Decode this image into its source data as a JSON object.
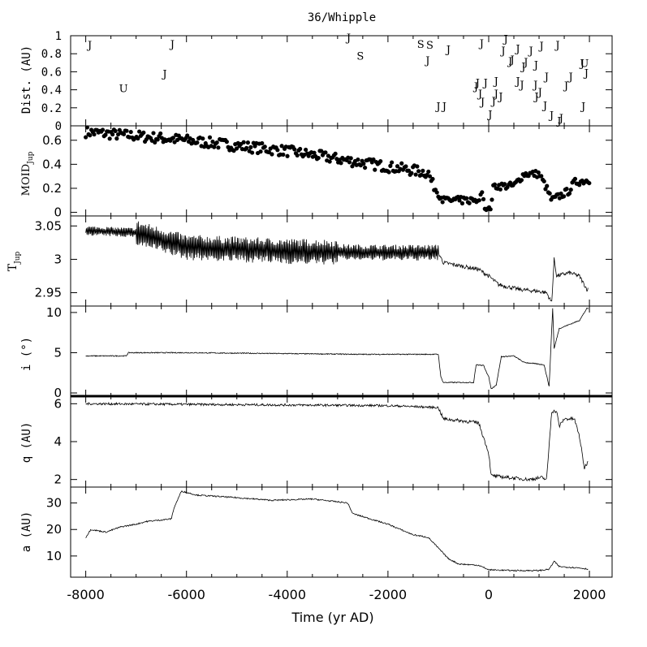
{
  "title": "36/Whipple",
  "xlabel": "Time (yr AD)",
  "x_ticks": [
    "-8000",
    "-6000",
    "-4000",
    "-2000",
    "0",
    "2000"
  ],
  "panels": {
    "dist": {
      "ylabel": "Dist. (AU)",
      "ticks": [
        "0",
        "0.2",
        "0.4",
        "0.6",
        "0.8",
        "1"
      ]
    },
    "moid": {
      "ylabel_main": "MOID",
      "ylabel_sub": "Jup",
      "ticks": [
        "0",
        "0.2",
        "0.4",
        "0.6"
      ]
    },
    "tjup": {
      "ylabel_main": "T",
      "ylabel_sub": "Jup",
      "ticks": [
        "2.95",
        "3",
        "3.05"
      ]
    },
    "inc": {
      "ylabel": "i (°)",
      "ticks": [
        "0",
        "5",
        "10"
      ]
    },
    "q": {
      "ylabel": "q (AU)",
      "ticks": [
        "2",
        "4",
        "6"
      ]
    },
    "a": {
      "ylabel": "a (AU)",
      "ticks": [
        "10",
        "20",
        "30"
      ]
    }
  },
  "chart_data": {
    "type": "line",
    "title": "36/Whipple",
    "xlabel": "Time (yr AD)",
    "xlim": [
      -8300,
      2450
    ],
    "x_ticks": [
      -8000,
      -6000,
      -4000,
      -2000,
      0,
      2000
    ],
    "panels": [
      {
        "id": "dist",
        "type": "scatter",
        "ylabel": "Dist. (AU)",
        "ylim": [
          0,
          1
        ],
        "note": "close encounters marked by planet letter",
        "points": [
          {
            "x": -7920,
            "y": 0.9,
            "label": "J"
          },
          {
            "x": -7250,
            "y": 0.42,
            "label": "U"
          },
          {
            "x": -6430,
            "y": 0.58,
            "label": "J"
          },
          {
            "x": -6280,
            "y": 0.91,
            "label": "J"
          },
          {
            "x": -2780,
            "y": 0.98,
            "label": "J"
          },
          {
            "x": -2550,
            "y": 0.78,
            "label": "S"
          },
          {
            "x": -1350,
            "y": 0.91,
            "label": "S"
          },
          {
            "x": -1170,
            "y": 0.9,
            "label": "S"
          },
          {
            "x": -1210,
            "y": 0.73,
            "label": "J"
          },
          {
            "x": -1000,
            "y": 0.22,
            "label": "J"
          },
          {
            "x": -880,
            "y": 0.22,
            "label": "J"
          },
          {
            "x": -800,
            "y": 0.85,
            "label": "J"
          },
          {
            "x": -250,
            "y": 0.44,
            "label": "J"
          },
          {
            "x": -220,
            "y": 0.48,
            "label": "J"
          },
          {
            "x": -170,
            "y": 0.36,
            "label": "J"
          },
          {
            "x": -140,
            "y": 0.92,
            "label": "J"
          },
          {
            "x": -120,
            "y": 0.27,
            "label": "J"
          },
          {
            "x": -60,
            "y": 0.48,
            "label": "J"
          },
          {
            "x": 30,
            "y": 0.13,
            "label": "J"
          },
          {
            "x": 100,
            "y": 0.28,
            "label": "J"
          },
          {
            "x": 150,
            "y": 0.36,
            "label": "J"
          },
          {
            "x": 150,
            "y": 0.5,
            "label": "J"
          },
          {
            "x": 240,
            "y": 0.33,
            "label": "J"
          },
          {
            "x": 290,
            "y": 0.84,
            "label": "J"
          },
          {
            "x": 340,
            "y": 0.97,
            "label": "J"
          },
          {
            "x": 430,
            "y": 0.72,
            "label": "J"
          },
          {
            "x": 470,
            "y": 0.74,
            "label": "J"
          },
          {
            "x": 580,
            "y": 0.86,
            "label": "J"
          },
          {
            "x": 580,
            "y": 0.5,
            "label": "J"
          },
          {
            "x": 660,
            "y": 0.46,
            "label": "J"
          },
          {
            "x": 690,
            "y": 0.66,
            "label": "J"
          },
          {
            "x": 740,
            "y": 0.71,
            "label": "J"
          },
          {
            "x": 840,
            "y": 0.84,
            "label": "J"
          },
          {
            "x": 930,
            "y": 0.46,
            "label": "J"
          },
          {
            "x": 940,
            "y": 0.68,
            "label": "J"
          },
          {
            "x": 950,
            "y": 0.33,
            "label": "J"
          },
          {
            "x": 1020,
            "y": 0.38,
            "label": "J"
          },
          {
            "x": 1050,
            "y": 0.89,
            "label": "J"
          },
          {
            "x": 1120,
            "y": 0.23,
            "label": "J"
          },
          {
            "x": 1150,
            "y": 0.55,
            "label": "J"
          },
          {
            "x": 1250,
            "y": 0.12,
            "label": "J"
          },
          {
            "x": 1370,
            "y": 0.9,
            "label": "J"
          },
          {
            "x": 1400,
            "y": 0.06,
            "label": "J"
          },
          {
            "x": 1440,
            "y": 0.09,
            "label": "J"
          },
          {
            "x": 1540,
            "y": 0.45,
            "label": "J"
          },
          {
            "x": 1630,
            "y": 0.55,
            "label": "J"
          },
          {
            "x": 1860,
            "y": 0.7,
            "label": "J"
          },
          {
            "x": 1880,
            "y": 0.22,
            "label": "J"
          },
          {
            "x": 1900,
            "y": 0.7,
            "label": "U"
          },
          {
            "x": 1940,
            "y": 0.59,
            "label": "J"
          }
        ]
      },
      {
        "id": "moid",
        "type": "scatter",
        "ylabel": "MOID_Jup",
        "ylim": [
          -0.03,
          0.72
        ],
        "trend": [
          [
            -8000,
            0.67
          ],
          [
            -6000,
            0.6
          ],
          [
            -4000,
            0.51
          ],
          [
            -2000,
            0.38
          ],
          [
            -1200,
            0.33
          ],
          [
            -1100,
            0.22
          ],
          [
            -900,
            0.1
          ],
          [
            -200,
            0.1
          ],
          [
            -150,
            0.18
          ],
          [
            -60,
            0.02
          ],
          [
            30,
            0.03
          ],
          [
            100,
            0.22
          ],
          [
            500,
            0.22
          ],
          [
            700,
            0.32
          ],
          [
            1000,
            0.32
          ],
          [
            1150,
            0.2
          ],
          [
            1250,
            0.1
          ],
          [
            1600,
            0.18
          ],
          [
            1700,
            0.25
          ],
          [
            2000,
            0.27
          ]
        ]
      },
      {
        "id": "tjup",
        "type": "line",
        "ylabel": "T_Jup",
        "ylim": [
          2.93,
          3.065
        ],
        "trend": [
          [
            -8000,
            3.043
          ],
          [
            -7000,
            3.04
          ],
          [
            -6000,
            3.018
          ],
          [
            -4000,
            3.012
          ],
          [
            -2000,
            3.01
          ],
          [
            -1000,
            3.01
          ],
          [
            -900,
            2.995
          ],
          [
            -200,
            2.985
          ],
          [
            0,
            2.975
          ],
          [
            200,
            2.962
          ],
          [
            600,
            2.955
          ],
          [
            1000,
            2.952
          ],
          [
            1150,
            2.95
          ],
          [
            1250,
            2.935
          ],
          [
            1300,
            3.0
          ],
          [
            1350,
            2.975
          ],
          [
            1600,
            2.98
          ],
          [
            1800,
            2.975
          ],
          [
            1950,
            2.955
          ]
        ]
      },
      {
        "id": "inc",
        "type": "line",
        "ylabel": "i (°)",
        "ylim": [
          -0.4,
          10.8
        ],
        "trend": [
          [
            -8000,
            4.6
          ],
          [
            -7200,
            4.6
          ],
          [
            -7150,
            5.0
          ],
          [
            -6000,
            5.0
          ],
          [
            -2500,
            4.8
          ],
          [
            -1000,
            4.8
          ],
          [
            -950,
            2.0
          ],
          [
            -900,
            1.3
          ],
          [
            -300,
            1.3
          ],
          [
            -250,
            3.5
          ],
          [
            -100,
            3.4
          ],
          [
            0,
            2.0
          ],
          [
            50,
            0.5
          ],
          [
            150,
            1.0
          ],
          [
            250,
            4.5
          ],
          [
            500,
            4.6
          ],
          [
            700,
            3.8
          ],
          [
            1100,
            3.5
          ],
          [
            1200,
            0.8
          ],
          [
            1270,
            10.5
          ],
          [
            1300,
            5.5
          ],
          [
            1400,
            8.0
          ],
          [
            1600,
            8.5
          ],
          [
            1800,
            9.0
          ],
          [
            1950,
            10.5
          ]
        ]
      },
      {
        "id": "q",
        "type": "line",
        "ylabel": "q (AU)",
        "ylim": [
          1.6,
          6.4
        ],
        "trend": [
          [
            -8000,
            6.0
          ],
          [
            -2000,
            5.9
          ],
          [
            -1000,
            5.8
          ],
          [
            -900,
            5.2
          ],
          [
            -200,
            5.0
          ],
          [
            0,
            3.4
          ],
          [
            50,
            2.2
          ],
          [
            400,
            2.1
          ],
          [
            800,
            2.0
          ],
          [
            1050,
            2.1
          ],
          [
            1150,
            2.0
          ],
          [
            1250,
            5.6
          ],
          [
            1350,
            5.6
          ],
          [
            1400,
            4.8
          ],
          [
            1500,
            5.2
          ],
          [
            1700,
            5.2
          ],
          [
            1800,
            4.3
          ],
          [
            1900,
            2.6
          ],
          [
            1980,
            3.0
          ]
        ]
      },
      {
        "id": "a",
        "type": "line",
        "ylabel": "a (AU)",
        "ylim": [
          2,
          36
        ],
        "trend": [
          [
            -8000,
            17
          ],
          [
            -7900,
            20
          ],
          [
            -7600,
            19
          ],
          [
            -7300,
            21
          ],
          [
            -7000,
            22
          ],
          [
            -6800,
            23
          ],
          [
            -6300,
            24
          ],
          [
            -6250,
            28
          ],
          [
            -6100,
            34.5
          ],
          [
            -5800,
            33
          ],
          [
            -5000,
            32
          ],
          [
            -4300,
            31
          ],
          [
            -3500,
            31.5
          ],
          [
            -2800,
            30
          ],
          [
            -2700,
            26
          ],
          [
            -2000,
            22
          ],
          [
            -1500,
            18
          ],
          [
            -1200,
            17
          ],
          [
            -1000,
            13
          ],
          [
            -800,
            9
          ],
          [
            -600,
            7
          ],
          [
            -200,
            6.5
          ],
          [
            0,
            4.8
          ],
          [
            500,
            4.5
          ],
          [
            1000,
            4.5
          ],
          [
            1200,
            5
          ],
          [
            1300,
            8
          ],
          [
            1400,
            6
          ],
          [
            1800,
            5.5
          ],
          [
            2000,
            5
          ]
        ]
      }
    ]
  }
}
